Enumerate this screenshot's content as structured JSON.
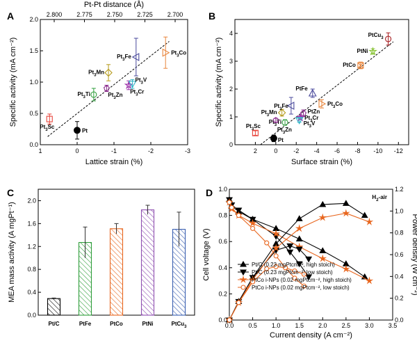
{
  "chart_data": [
    {
      "panel": "A",
      "type": "scatter",
      "xlabel": "Lattice strain (%)",
      "ylabel": "Specific activity (mA cm⁻²)",
      "top_axis_label": "Pt-Pt distance (Å)",
      "xlim": [
        1,
        -3
      ],
      "ylim": [
        0,
        2
      ],
      "x_ticks": [
        "1",
        "0",
        "-1",
        "-2",
        "-3"
      ],
      "y_ticks": [
        "0.0",
        "0.5",
        "1.0",
        "1.5",
        "2.0"
      ],
      "top_ticks": [
        "2.800",
        "2.775",
        "2.750",
        "2.725",
        "2.700"
      ],
      "fit": {
        "x": [
          0.8,
          -2.5
        ],
        "y": [
          0.13,
          1.65
        ]
      },
      "points": [
        {
          "label": "Pt₃Sc",
          "x": 0.75,
          "y": 0.41,
          "err": 0.08,
          "color": "#e8443a",
          "marker": "square"
        },
        {
          "label": "Pt",
          "x": 0.0,
          "y": 0.23,
          "err": 0.14,
          "color": "#000000",
          "marker": "circle-filled"
        },
        {
          "label": "Pt₃Ti",
          "x": -0.45,
          "y": 0.8,
          "err": 0.1,
          "color": "#2e9d3a",
          "marker": "circle"
        },
        {
          "label": "Pt₃Mn",
          "x": -0.85,
          "y": 1.15,
          "err": 0.13,
          "color": "#b59a1a",
          "marker": "diamond"
        },
        {
          "label": "Pt₃Zn",
          "x": -0.8,
          "y": 0.9,
          "err": 0.05,
          "color": "#8a2a8c",
          "marker": "pentagon"
        },
        {
          "label": "Pt₃Cr",
          "x": -1.4,
          "y": 0.95,
          "err": 0.07,
          "color": "#9b2ea8",
          "marker": "star"
        },
        {
          "label": "Pt₃V",
          "x": -1.5,
          "y": 0.97,
          "err": 0.07,
          "color": "#32b6c8",
          "marker": "triangle-down"
        },
        {
          "label": "Pt₃Fe",
          "x": -1.6,
          "y": 1.4,
          "err": 0.3,
          "color": "#4a4a9c",
          "marker": "triangle-left"
        },
        {
          "label": "Pt₃Co",
          "x": -2.4,
          "y": 1.47,
          "err": 0.25,
          "color": "#e8843a",
          "marker": "triangle-right"
        }
      ]
    },
    {
      "panel": "B",
      "type": "scatter",
      "xlabel": "Surface strain (%)",
      "ylabel": "Specific activity (mA cm⁻²)",
      "xlim": [
        4,
        -13
      ],
      "ylim": [
        0,
        4.5
      ],
      "x_ticks": [
        "2",
        "0",
        "-2",
        "-4",
        "-6",
        "-8",
        "-10",
        "-12"
      ],
      "y_ticks": [
        "0",
        "1",
        "2",
        "3",
        "4"
      ],
      "fit": {
        "x": [
          1.5,
          -11.5
        ],
        "y": [
          0.0,
          3.7
        ]
      },
      "points": [
        {
          "label": "Pt₃Sc",
          "x": 2.0,
          "y": 0.42,
          "err": 0.08,
          "color": "#e8443a",
          "marker": "square"
        },
        {
          "label": "Pt",
          "x": 0.2,
          "y": 0.23,
          "err": 0.12,
          "color": "#000000",
          "marker": "circle-filled"
        },
        {
          "label": "Pt₃Ti",
          "x": -0.9,
          "y": 0.8,
          "err": 0.1,
          "color": "#2e9d3a",
          "marker": "circle"
        },
        {
          "label": "Pt₃Zn",
          "x": 0.0,
          "y": 0.88,
          "err": 0.07,
          "color": "#8a2a8c",
          "marker": "pentagon"
        },
        {
          "label": "Pt₃Mn",
          "x": -0.6,
          "y": 1.15,
          "err": 0.12,
          "color": "#b59a1a",
          "marker": "diamond"
        },
        {
          "label": "Pt₃Fe",
          "x": -1.5,
          "y": 1.4,
          "err": 0.3,
          "color": "#4a4a9c",
          "marker": "triangle-left"
        },
        {
          "label": "PtZn",
          "x": -2.7,
          "y": 1.13,
          "err": 0.12,
          "color": "#8a2a8c",
          "marker": "pentagon"
        },
        {
          "label": "Pt₃Cr",
          "x": -2.4,
          "y": 0.97,
          "err": 0.07,
          "color": "#9b2ea8",
          "marker": "star"
        },
        {
          "label": "Pt₃V",
          "x": -2.3,
          "y": 0.88,
          "err": 0.07,
          "color": "#32b6c8",
          "marker": "triangle-down"
        },
        {
          "label": "PtFe",
          "x": -3.6,
          "y": 1.85,
          "err": 0.15,
          "color": "#4a4a9c",
          "marker": "triangle-up"
        },
        {
          "label": "Pt₃Co",
          "x": -4.5,
          "y": 1.47,
          "err": 0.15,
          "color": "#e8843a",
          "marker": "triangle-right"
        },
        {
          "label": "PtCo",
          "x": -8.3,
          "y": 2.85,
          "err": 0.12,
          "color": "#e8843a",
          "marker": "square-x"
        },
        {
          "label": "PtNi",
          "x": -9.5,
          "y": 3.35,
          "err": 0.1,
          "color": "#8bc43a",
          "marker": "star"
        },
        {
          "label": "PtCu₃",
          "x": -11.0,
          "y": 3.8,
          "err": 0.22,
          "color": "#a4161a",
          "marker": "circle"
        }
      ]
    },
    {
      "panel": "C",
      "type": "bar",
      "ylabel": "MEA mass activity (A mgPt⁻¹)",
      "ylim": [
        0,
        2.2
      ],
      "y_ticks": [
        "0.0",
        "0.4",
        "0.8",
        "1.2",
        "1.6",
        "2.0"
      ],
      "categories": [
        "Pt/C",
        "PtFe",
        "PtCo",
        "PtNi",
        "PtCu₃"
      ],
      "values": [
        0.29,
        1.27,
        1.51,
        1.84,
        1.5
      ],
      "errors": [
        0.01,
        0.27,
        0.09,
        0.08,
        0.3
      ],
      "colors": [
        "#000000",
        "#2e9d3a",
        "#e8661e",
        "#8e4fb0",
        "#3a5fb0"
      ]
    },
    {
      "panel": "D",
      "type": "line",
      "xlabel": "Current density (A cm⁻²)",
      "ylabel": "Cell voltage (V)",
      "ylabel_right": "Power density (W cm⁻²)",
      "annotation": "H₂-air",
      "xlim": [
        0,
        3.5
      ],
      "ylim": [
        0,
        1.0
      ],
      "ylim_right": [
        0,
        1.2
      ],
      "x_ticks": [
        "0.0",
        "0.5",
        "1.0",
        "1.5",
        "2.0",
        "2.5",
        "3.0",
        "3.5"
      ],
      "y_ticks": [
        "0.0",
        "0.2",
        "0.4",
        "0.6",
        "0.8",
        "1.0"
      ],
      "y_ticks_right": [
        "0.0",
        "0.2",
        "0.4",
        "0.6",
        "0.8",
        "1.0",
        "1.2"
      ],
      "legend": [
        "Pt/C (0.23 mgPtcm⁻², high stoich)",
        "Pt/C (0.23 mgPtcm⁻², low stoich)",
        "PtCo i-NPs (0.02 mgPtcm⁻², high stoich)",
        "PtCo i-NPs (0.02 mgPtcm⁻², low stoich)"
      ],
      "series": [
        {
          "color": "#000000",
          "marker": "triangle-up",
          "axis": "left",
          "x": [
            0,
            0.05,
            0.2,
            0.5,
            1.0,
            1.5,
            2.0,
            2.5,
            2.9
          ],
          "y": [
            0.92,
            0.87,
            0.83,
            0.77,
            0.7,
            0.62,
            0.53,
            0.43,
            0.33
          ]
        },
        {
          "color": "#000000",
          "marker": "triangle-down",
          "axis": "left",
          "x": [
            0,
            0.05,
            0.2,
            0.5,
            1.0,
            1.3,
            1.5,
            1.7
          ],
          "y": [
            0.92,
            0.88,
            0.84,
            0.77,
            0.64,
            0.52,
            0.43,
            0.33
          ]
        },
        {
          "color": "#e8661e",
          "marker": "star",
          "axis": "left",
          "x": [
            0,
            0.05,
            0.2,
            0.5,
            1.0,
            1.5,
            2.0,
            2.5,
            3.0
          ],
          "y": [
            0.9,
            0.85,
            0.8,
            0.74,
            0.66,
            0.56,
            0.47,
            0.39,
            0.3
          ]
        },
        {
          "color": "#e8661e",
          "marker": "circle",
          "axis": "left",
          "x": [
            0,
            0.05,
            0.2,
            0.5,
            0.8,
            1.0,
            1.2,
            1.4,
            1.6
          ],
          "y": [
            0.9,
            0.86,
            0.8,
            0.7,
            0.59,
            0.49,
            0.4,
            0.32,
            0.26
          ]
        },
        {
          "color": "#000000",
          "marker": "triangle-up",
          "axis": "right",
          "x": [
            0,
            0.2,
            0.5,
            1.0,
            1.5,
            2.0,
            2.5,
            2.9
          ],
          "y": [
            0,
            0.17,
            0.39,
            0.7,
            0.93,
            1.06,
            1.07,
            0.96
          ]
        },
        {
          "color": "#000000",
          "marker": "triangle-down",
          "axis": "right",
          "x": [
            0,
            0.2,
            0.5,
            1.0,
            1.3,
            1.5,
            1.7
          ],
          "y": [
            0,
            0.17,
            0.39,
            0.64,
            0.68,
            0.65,
            0.56
          ]
        },
        {
          "color": "#e8661e",
          "marker": "star",
          "axis": "right",
          "x": [
            0,
            0.2,
            0.5,
            1.0,
            1.5,
            2.0,
            2.5,
            3.0
          ],
          "y": [
            0,
            0.16,
            0.37,
            0.66,
            0.84,
            0.94,
            0.98,
            0.9
          ]
        },
        {
          "color": "#e8661e",
          "marker": "circle",
          "axis": "right",
          "x": [
            0,
            0.2,
            0.5,
            0.8,
            1.0,
            1.2,
            1.4,
            1.6
          ],
          "y": [
            0,
            0.16,
            0.35,
            0.47,
            0.49,
            0.48,
            0.45,
            0.42
          ]
        }
      ]
    }
  ]
}
